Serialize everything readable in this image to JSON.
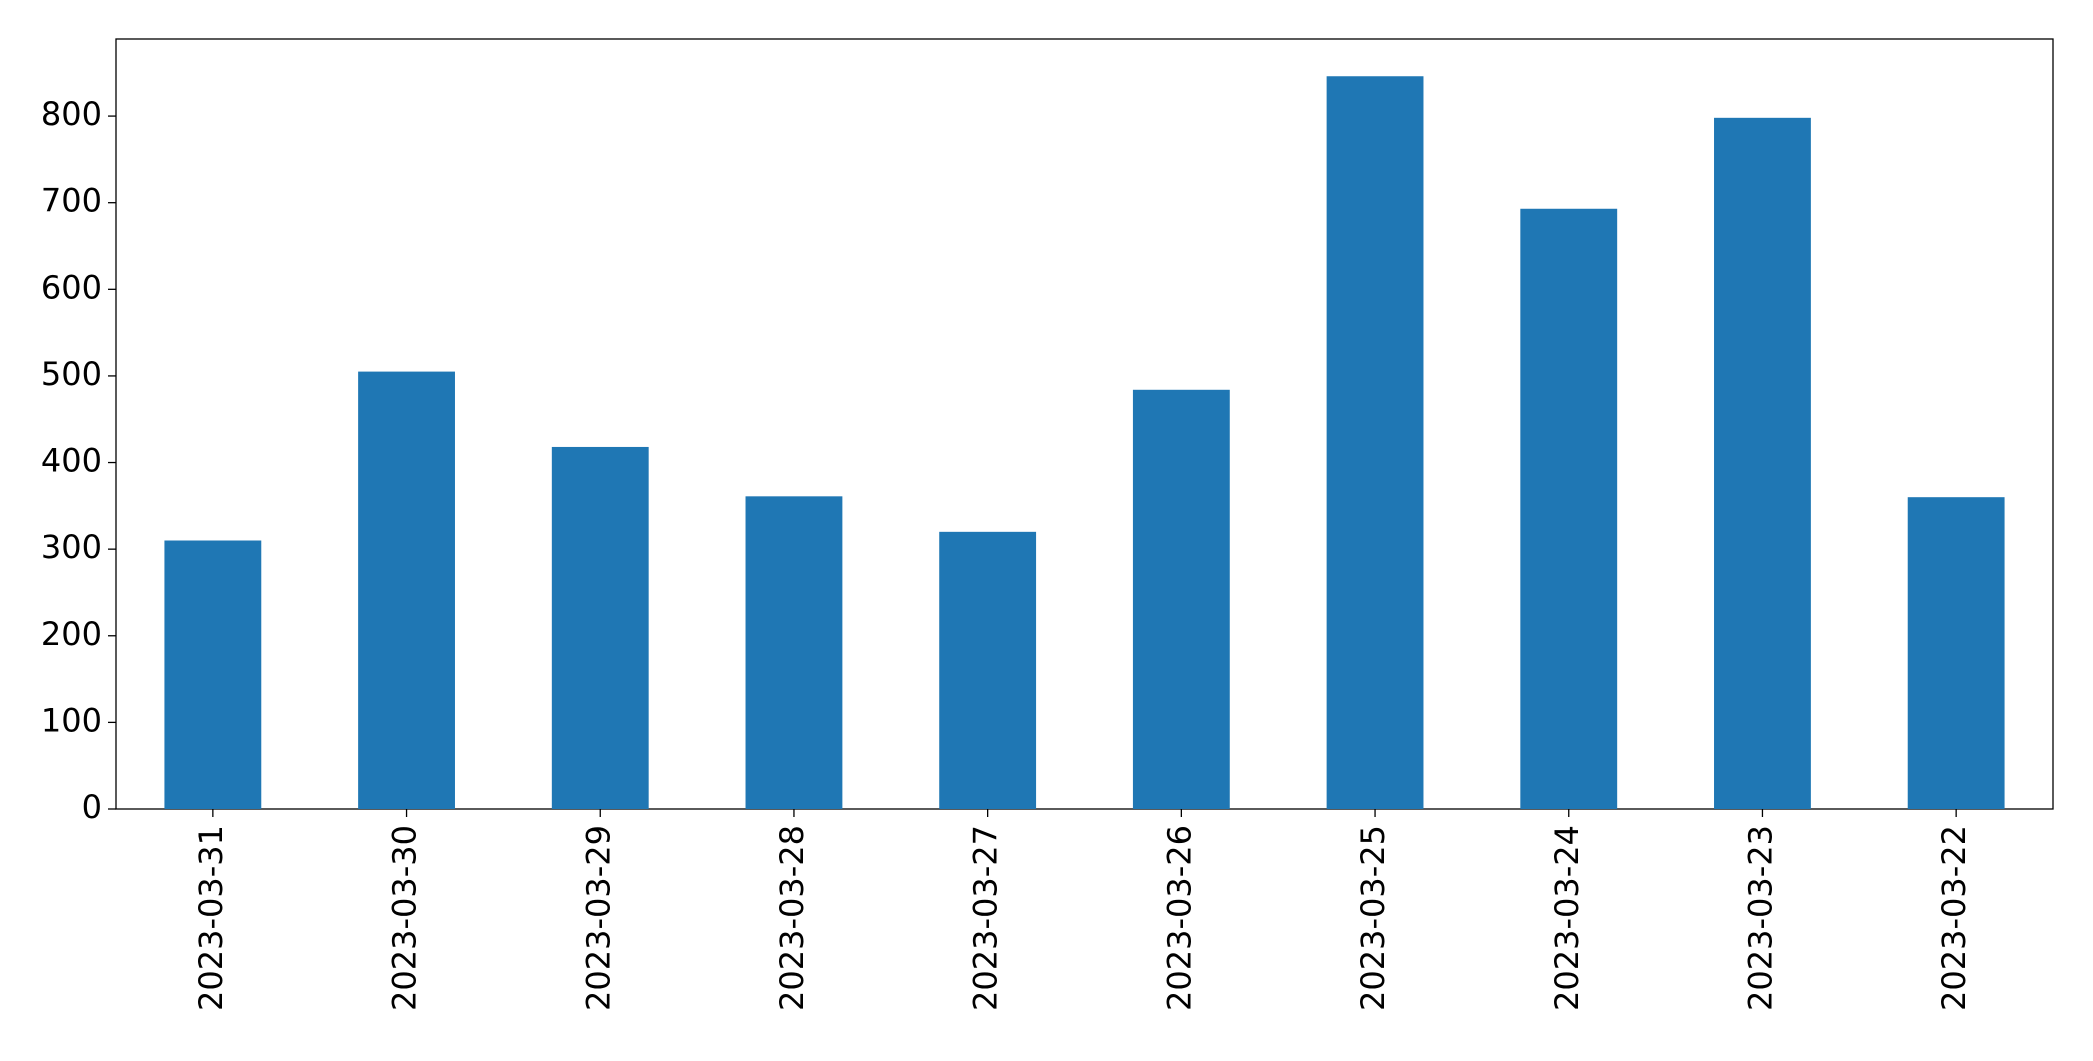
{
  "chart_data": {
    "type": "bar",
    "categories": [
      "2023-03-31",
      "2023-03-30",
      "2023-03-29",
      "2023-03-28",
      "2023-03-27",
      "2023-03-26",
      "2023-03-25",
      "2023-03-24",
      "2023-03-23",
      "2023-03-22"
    ],
    "values": [
      310,
      505,
      418,
      361,
      320,
      484,
      846,
      693,
      798,
      360
    ],
    "color": "#1f77b4",
    "ylim": [
      0,
      889
    ],
    "yticks": [
      0,
      100,
      200,
      300,
      400,
      500,
      600,
      700,
      800
    ],
    "grid": false
  }
}
